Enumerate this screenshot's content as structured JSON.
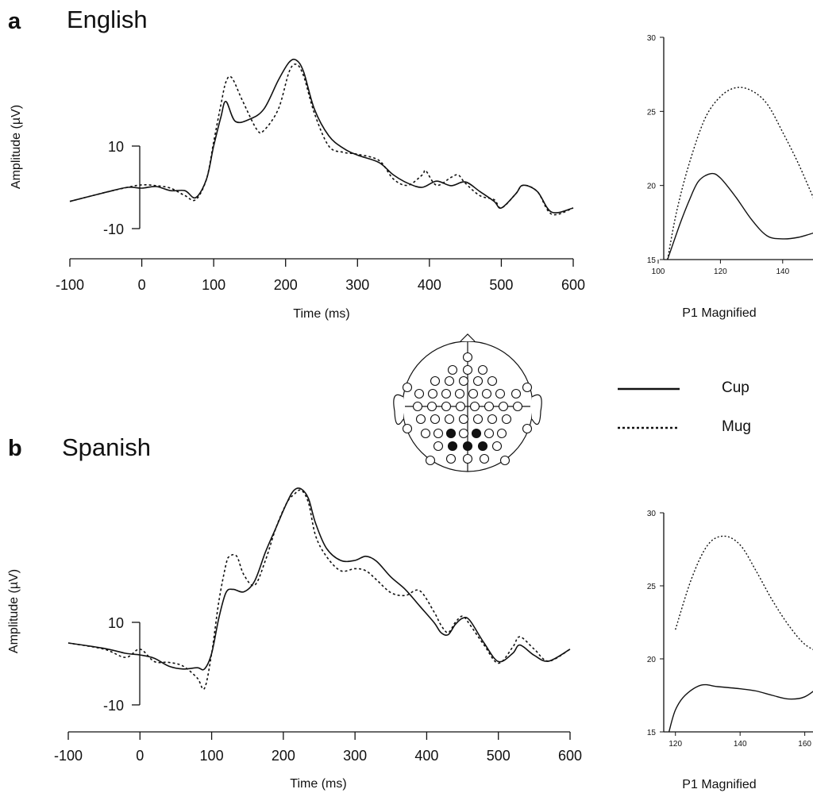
{
  "panels": [
    {
      "letter": "a",
      "title": "English",
      "ylabel": "Amplitude (µV)",
      "xlabel": "Time (ms)"
    },
    {
      "letter": "b",
      "title": "Spanish",
      "ylabel": "Amplitude (µV)",
      "xlabel": "Time (ms)"
    }
  ],
  "legend": [
    {
      "label": "Cup",
      "style": "solid"
    },
    {
      "label": "Mug",
      "style": "dotted"
    }
  ],
  "head_map": {
    "description_icon": "electrode-montage-icon"
  },
  "chart_data": [
    {
      "type": "line",
      "title": "English",
      "xlabel": "Time (ms)",
      "ylabel": "Amplitude (µV)",
      "xlim": [
        -100,
        600
      ],
      "x_ticks": [
        "-100",
        "0",
        "100",
        "200",
        "300",
        "400",
        "500",
        "600"
      ],
      "y_ticks": [
        "10",
        "-10"
      ],
      "series": [
        {
          "name": "Cup",
          "style": "solid",
          "x": [
            -100,
            -50,
            -20,
            0,
            20,
            40,
            60,
            75,
            90,
            100,
            110,
            117,
            130,
            150,
            170,
            190,
            205,
            215,
            225,
            240,
            260,
            280,
            300,
            330,
            350,
            370,
            390,
            410,
            430,
            450,
            470,
            490,
            500,
            520,
            530,
            550,
            570,
            600
          ],
          "y": [
            -3.4,
            -1.2,
            0,
            -0.2,
            0.2,
            -0.8,
            -0.8,
            -2.5,
            2,
            10,
            17,
            20.8,
            16,
            16.5,
            19,
            26,
            30.3,
            30.8,
            28,
            19,
            12.5,
            9.5,
            7.8,
            6,
            3,
            1,
            0,
            1.5,
            0.4,
            1.3,
            -1,
            -3.4,
            -5,
            -1.6,
            0.5,
            -1,
            -6,
            -5
          ]
        },
        {
          "name": "Mug",
          "style": "dotted",
          "x": [
            -100,
            -50,
            -20,
            0,
            20,
            40,
            60,
            75,
            90,
            100,
            110,
            117,
            125,
            140,
            160,
            170,
            190,
            205,
            215,
            225,
            240,
            260,
            280,
            300,
            330,
            350,
            370,
            390,
            395,
            410,
            430,
            440,
            450,
            470,
            490,
            500,
            520,
            530,
            550,
            570,
            600
          ],
          "y": [
            -3.4,
            -1.2,
            0,
            0.6,
            0.4,
            -0.2,
            -2,
            -3,
            2,
            11,
            20,
            25.5,
            26.6,
            21,
            14,
            13.8,
            19,
            28,
            29.8,
            27,
            18,
            10,
            8.5,
            8,
            6.5,
            2,
            0.5,
            3,
            4,
            0.5,
            2.4,
            3,
            1,
            -2,
            -3,
            -5,
            -1.6,
            0.5,
            -1,
            -6.5,
            -5
          ]
        }
      ]
    },
    {
      "type": "line",
      "title": "P1 Magnified",
      "xlim": [
        100,
        150
      ],
      "ylim": [
        15,
        30
      ],
      "x_ticks": [
        "100",
        "120",
        "140"
      ],
      "y_ticks": [
        "15",
        "20",
        "25",
        "30"
      ],
      "series": [
        {
          "name": "Cup",
          "style": "solid",
          "x": [
            103,
            107,
            110,
            113,
            117,
            120,
            125,
            130,
            135,
            140,
            145,
            150
          ],
          "y": [
            15,
            17.4,
            19,
            20.3,
            20.8,
            20.5,
            19.2,
            17.7,
            16.6,
            16.4,
            16.5,
            16.8
          ]
        },
        {
          "name": "Mug",
          "style": "dotted",
          "x": [
            103,
            106,
            110,
            115,
            120,
            125,
            130,
            135,
            140,
            145,
            150
          ],
          "y": [
            15,
            18.3,
            21.5,
            24.5,
            26,
            26.6,
            26.4,
            25.5,
            23.6,
            21.5,
            19.1
          ]
        }
      ]
    },
    {
      "type": "line",
      "title": "Spanish",
      "xlabel": "Time (ms)",
      "ylabel": "Amplitude (µV)",
      "xlim": [
        -100,
        600
      ],
      "x_ticks": [
        "-100",
        "0",
        "100",
        "200",
        "300",
        "400",
        "500",
        "600"
      ],
      "y_ticks": [
        "10",
        "-10"
      ],
      "series": [
        {
          "name": "Cup",
          "style": "solid",
          "x": [
            -100,
            -50,
            -20,
            0,
            20,
            40,
            60,
            80,
            90,
            100,
            110,
            120,
            130,
            145,
            160,
            175,
            190,
            205,
            215,
            225,
            235,
            245,
            260,
            280,
            300,
            315,
            330,
            350,
            370,
            390,
            410,
            420,
            430,
            440,
            450,
            460,
            480,
            500,
            520,
            530,
            550,
            570,
            600
          ],
          "y": [
            5,
            3.7,
            2.5,
            2.1,
            1.3,
            -0.6,
            -1.3,
            -1,
            -1.3,
            2.5,
            11,
            17.2,
            18,
            17.4,
            20,
            27,
            33,
            39,
            42,
            42.3,
            40,
            34,
            28,
            25,
            25,
            26,
            24.8,
            21,
            18,
            14,
            10,
            7.5,
            7,
            9.5,
            11,
            10.5,
            5,
            0.5,
            2.5,
            4.5,
            2,
            0.6,
            3.5
          ]
        },
        {
          "name": "Mug",
          "style": "dotted",
          "x": [
            -100,
            -50,
            -20,
            0,
            20,
            40,
            60,
            80,
            90,
            100,
            110,
            120,
            125,
            135,
            145,
            160,
            175,
            190,
            205,
            215,
            225,
            235,
            245,
            260,
            280,
            300,
            315,
            330,
            350,
            370,
            390,
            410,
            420,
            430,
            440,
            450,
            460,
            480,
            500,
            520,
            530,
            550,
            570,
            600
          ],
          "y": [
            5,
            3.5,
            1.5,
            3.5,
            0.5,
            0.3,
            -0.6,
            -3.5,
            -6,
            2.5,
            15,
            24,
            26,
            26,
            21.5,
            19,
            25,
            33,
            39,
            41,
            42,
            39,
            31,
            26,
            22.5,
            23,
            22.5,
            20.3,
            17.2,
            16.5,
            17.7,
            12.6,
            9.3,
            7.5,
            10,
            11.5,
            9.5,
            4.5,
            0.1,
            4,
            6.5,
            3.5,
            0.6,
            3.5
          ]
        }
      ]
    },
    {
      "type": "line",
      "title": "P1 Magnified",
      "xlim": [
        110,
        165
      ],
      "ylim": [
        15,
        30
      ],
      "x_ticks": [
        "120",
        "140",
        "160"
      ],
      "y_ticks": [
        "15",
        "20",
        "25",
        "30"
      ],
      "series": [
        {
          "name": "Cup",
          "style": "solid",
          "x": [
            118,
            120,
            123,
            128,
            133,
            140,
            145,
            150,
            155,
            160,
            165
          ],
          "y": [
            15,
            16.5,
            17.5,
            18.2,
            18.1,
            17.95,
            17.8,
            17.5,
            17.25,
            17.4,
            18.2
          ]
        },
        {
          "name": "Mug",
          "style": "dotted",
          "x": [
            113,
            116,
            120,
            125,
            130,
            135,
            140,
            145,
            150,
            155,
            160,
            165
          ],
          "y": [
            15,
            18.3,
            22,
            25.5,
            27.8,
            28.4,
            27.8,
            26,
            24,
            22.3,
            21,
            20.4
          ]
        }
      ]
    }
  ]
}
